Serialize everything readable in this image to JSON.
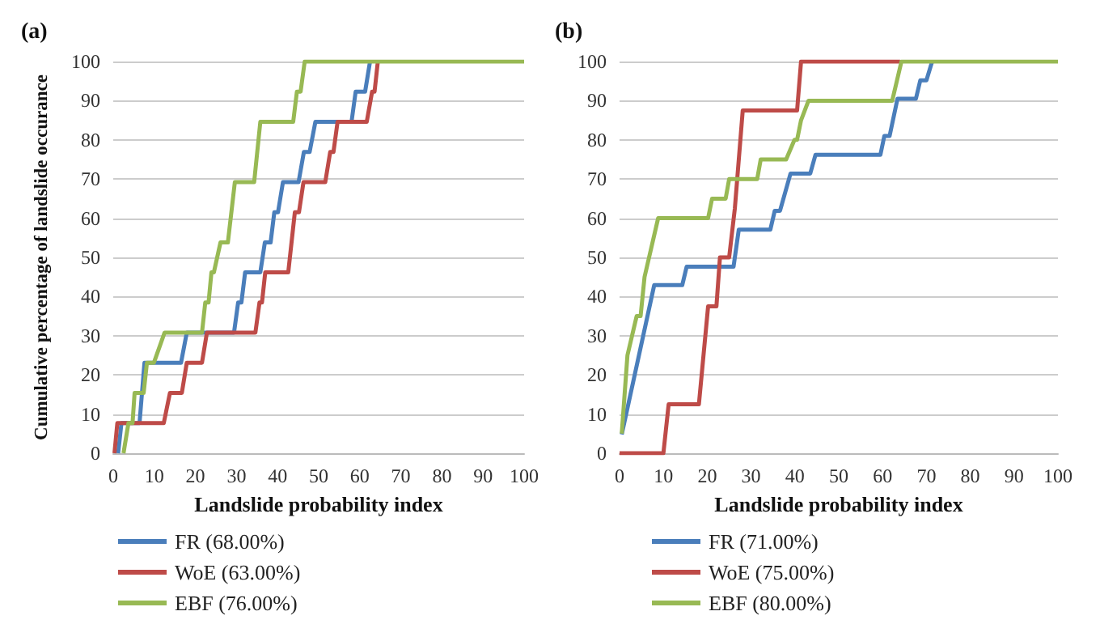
{
  "chart_data": [
    {
      "type": "line",
      "title": "(a)",
      "xlabel": "Landslide probability index",
      "ylabel": "Cumulative percentage of landslide occurance",
      "xlim": [
        0,
        100
      ],
      "ylim": [
        0,
        100
      ],
      "xticks": [
        0,
        10,
        20,
        30,
        40,
        50,
        60,
        70,
        80,
        90,
        100
      ],
      "yticks": [
        0,
        10,
        20,
        30,
        40,
        50,
        60,
        70,
        80,
        90,
        100
      ],
      "grid": "y",
      "legend": "bottom",
      "marker": "none",
      "series": [
        {
          "name": "FR (68.00%)",
          "color": "#4a7ebb",
          "x": [
            1.2,
            2,
            6.4,
            7.6,
            16.5,
            17.9,
            29.4,
            30.4,
            31.2,
            32.1,
            35.8,
            36.9,
            38.3,
            39.2,
            40.1,
            41.3,
            45.1,
            46.4,
            47.8,
            49.2,
            58,
            59,
            61.3,
            62.5
          ],
          "values": [
            0,
            7.7,
            7.7,
            23.1,
            23.1,
            30.8,
            30.8,
            38.5,
            38.5,
            46.2,
            46.2,
            53.8,
            53.8,
            61.5,
            61.5,
            69.2,
            69.2,
            76.9,
            76.9,
            84.6,
            84.6,
            92.3,
            92.3,
            100
          ]
        },
        {
          "name": "WoE (63.00%)",
          "color": "#be4b48",
          "x": [
            0.3,
            1,
            12.3,
            13.8,
            16.7,
            17.9,
            21.6,
            22.8,
            34.6,
            35.6,
            36.2,
            37,
            42.6,
            44.2,
            45.2,
            46.3,
            51.6,
            52.8,
            53.6,
            54.6,
            61.7,
            63,
            63.6,
            64.4
          ],
          "values": [
            0,
            7.7,
            7.7,
            15.4,
            15.4,
            23.1,
            23.1,
            30.8,
            30.8,
            38.5,
            38.5,
            46.2,
            46.2,
            61.5,
            61.5,
            69.2,
            69.2,
            76.9,
            76.9,
            84.6,
            84.6,
            92.3,
            92.3,
            100
          ]
        },
        {
          "name": "EBF (76.00%)",
          "color": "#98b954",
          "x": [
            2.5,
            3.7,
            4.7,
            5.2,
            7.4,
            8.2,
            9.9,
            12.5,
            21.6,
            22.4,
            23.2,
            23.9,
            24.5,
            26.1,
            27.9,
            29.6,
            34.3,
            35.8,
            43.8,
            44.7,
            45.6,
            46.6,
            100
          ],
          "values": [
            0,
            7.7,
            7.7,
            15.4,
            15.4,
            23.1,
            23.1,
            30.8,
            30.8,
            38.5,
            38.5,
            46.2,
            46.2,
            53.8,
            53.8,
            69.2,
            69.2,
            84.6,
            84.6,
            92.3,
            92.3,
            100,
            100
          ]
        }
      ]
    },
    {
      "type": "line",
      "title": "(b)",
      "xlabel": "Landslide probability index",
      "xlim": [
        0,
        100
      ],
      "ylim": [
        0,
        100
      ],
      "xticks": [
        0,
        10,
        20,
        30,
        40,
        50,
        60,
        70,
        80,
        90,
        100
      ],
      "yticks": [
        0,
        10,
        20,
        30,
        40,
        50,
        60,
        70,
        80,
        90,
        100
      ],
      "grid": "y",
      "legend": "bottom",
      "marker": "none",
      "series": [
        {
          "name": "FR (71.00%)",
          "color": "#4a7ebb",
          "x": [
            0.5,
            7.9,
            14.3,
            15.3,
            26,
            27.2,
            34.4,
            35.4,
            36.6,
            39,
            43.5,
            44.7,
            59.5,
            60.4,
            61.6,
            63.4,
            67.6,
            68.6,
            70,
            71.3
          ],
          "values": [
            4.8,
            42.9,
            42.9,
            47.6,
            47.6,
            57.1,
            57.1,
            61.9,
            61.9,
            71.4,
            71.4,
            76.2,
            76.2,
            81,
            81,
            90.5,
            90.5,
            95.2,
            95.2,
            100
          ]
        },
        {
          "name": "WoE (75.00%)",
          "color": "#be4b48",
          "x": [
            0,
            10,
            11.2,
            18.1,
            20.2,
            22.1,
            22.9,
            25,
            26.3,
            28.1,
            40.5,
            41.4,
            64
          ],
          "values": [
            0,
            0,
            12.5,
            12.5,
            37.5,
            37.5,
            50,
            50,
            62.5,
            87.5,
            87.5,
            100,
            100
          ]
        },
        {
          "name": "EBF (80.00%)",
          "color": "#98b954",
          "x": [
            0.5,
            1.8,
            3.9,
            4.8,
            5.7,
            8.8,
            20.2,
            21.1,
            24.2,
            25,
            31.4,
            32.2,
            38,
            39.9,
            40.5,
            41.4,
            43.1,
            62.2,
            64.3,
            100
          ],
          "values": [
            5,
            25,
            35,
            35,
            45,
            60,
            60,
            65,
            65,
            70,
            70,
            75,
            75,
            80,
            80,
            85,
            90,
            90,
            100,
            100
          ]
        }
      ]
    }
  ]
}
